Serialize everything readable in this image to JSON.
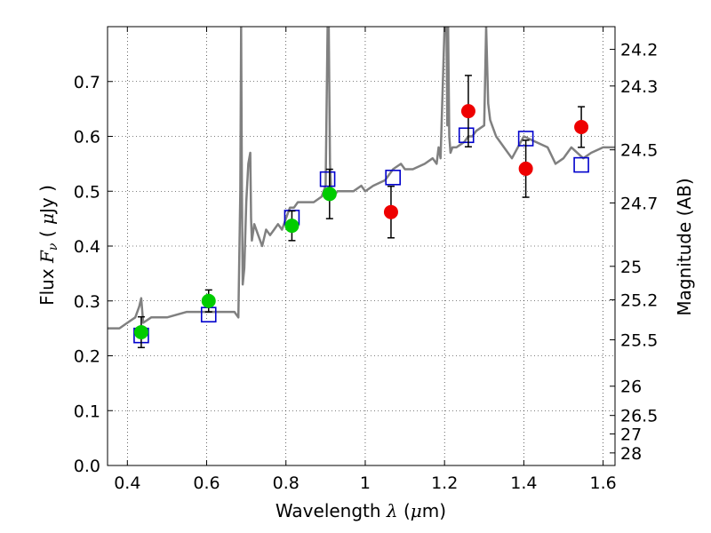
{
  "chart_data": {
    "type": "scatter",
    "xlabel": {
      "prefix": "Wavelength  ",
      "math": "λ",
      "suffix": " (",
      "mu": "μ",
      "unit": "m)"
    },
    "ylabel": {
      "prefix": "Flux  ",
      "math": "F",
      "sub": "ν",
      "suffix": "  ( ",
      "mu": "μ",
      "unit": "Jy )"
    },
    "ylabel_right": "Magnitude (AB)",
    "xlim": [
      0.35,
      1.63
    ],
    "ylim": [
      0.0,
      0.8
    ],
    "grid": true,
    "x_ticks": [
      0.4,
      0.6,
      0.8,
      1.0,
      1.2,
      1.4,
      1.6
    ],
    "x_tick_labels": [
      "0.4",
      "0.6",
      "0.8",
      "1",
      "1.2",
      "1.4",
      "1.6"
    ],
    "y_ticks": [
      0.0,
      0.1,
      0.2,
      0.3,
      0.4,
      0.5,
      0.6,
      0.7
    ],
    "y_tick_labels": [
      "0.0",
      "0.1",
      "0.2",
      "0.3",
      "0.4",
      "0.5",
      "0.6",
      "0.7"
    ],
    "magnitude_ticks": [
      "24.2",
      "24.3",
      "24.5",
      "24.7",
      "25",
      "25.2",
      "25.5",
      "26",
      "26.5",
      "27",
      "28"
    ],
    "series": [
      {
        "kind": "model-spectrum",
        "color": "#808080",
        "x": [
          0.35,
          0.38,
          0.4,
          0.42,
          0.43,
          0.435,
          0.44,
          0.46,
          0.5,
          0.55,
          0.6,
          0.63,
          0.65,
          0.67,
          0.68,
          0.685,
          0.687,
          0.689,
          0.691,
          0.695,
          0.7,
          0.705,
          0.71,
          0.712,
          0.714,
          0.72,
          0.73,
          0.74,
          0.75,
          0.76,
          0.77,
          0.78,
          0.79,
          0.8,
          0.81,
          0.82,
          0.83,
          0.85,
          0.87,
          0.89,
          0.9,
          0.905,
          0.908,
          0.911,
          0.914,
          0.92,
          0.93,
          0.95,
          0.97,
          0.99,
          1.0,
          1.02,
          1.05,
          1.07,
          1.09,
          1.1,
          1.12,
          1.15,
          1.17,
          1.18,
          1.185,
          1.19,
          1.2,
          1.205,
          1.207,
          1.209,
          1.212,
          1.215,
          1.22,
          1.23,
          1.25,
          1.26,
          1.27,
          1.28,
          1.3,
          1.305,
          1.31,
          1.315,
          1.32,
          1.33,
          1.35,
          1.37,
          1.4,
          1.43,
          1.46,
          1.48,
          1.5,
          1.52,
          1.55,
          1.57,
          1.6,
          1.63
        ],
        "y": [
          0.25,
          0.25,
          0.26,
          0.27,
          0.29,
          0.305,
          0.26,
          0.27,
          0.27,
          0.28,
          0.28,
          0.28,
          0.28,
          0.28,
          0.27,
          0.5,
          0.8,
          0.5,
          0.33,
          0.36,
          0.48,
          0.55,
          0.57,
          0.45,
          0.41,
          0.44,
          0.42,
          0.4,
          0.43,
          0.42,
          0.43,
          0.44,
          0.43,
          0.45,
          0.47,
          0.47,
          0.48,
          0.48,
          0.48,
          0.49,
          0.51,
          0.8,
          0.8,
          0.55,
          0.5,
          0.49,
          0.5,
          0.5,
          0.5,
          0.51,
          0.5,
          0.51,
          0.52,
          0.54,
          0.55,
          0.54,
          0.54,
          0.55,
          0.56,
          0.55,
          0.58,
          0.56,
          0.8,
          0.8,
          0.62,
          0.8,
          0.6,
          0.57,
          0.58,
          0.58,
          0.59,
          0.6,
          0.6,
          0.61,
          0.62,
          0.8,
          0.66,
          0.63,
          0.62,
          0.6,
          0.58,
          0.56,
          0.6,
          0.59,
          0.58,
          0.55,
          0.56,
          0.58,
          0.56,
          0.57,
          0.58,
          0.58
        ]
      },
      {
        "kind": "model-photometry",
        "color": "#0000cc",
        "x": [
          0.435,
          0.605,
          0.815,
          0.905,
          1.07,
          1.255,
          1.405,
          1.545
        ],
        "y": [
          0.237,
          0.275,
          0.452,
          0.522,
          0.525,
          0.602,
          0.596,
          0.548
        ]
      },
      {
        "kind": "observed-photometry",
        "color": "#00cc00",
        "x": [
          0.435,
          0.605,
          0.815,
          0.91
        ],
        "y": [
          0.243,
          0.3,
          0.437,
          0.495
        ],
        "yerr": [
          0.028,
          0.02,
          0.027,
          0.045
        ]
      },
      {
        "kind": "observed-photometry",
        "color": "#ee0000",
        "x": [
          1.065,
          1.26,
          1.405,
          1.545
        ],
        "y": [
          0.462,
          0.646,
          0.541,
          0.617
        ],
        "yerr": [
          0.047,
          0.065,
          0.052,
          0.037
        ]
      }
    ]
  }
}
